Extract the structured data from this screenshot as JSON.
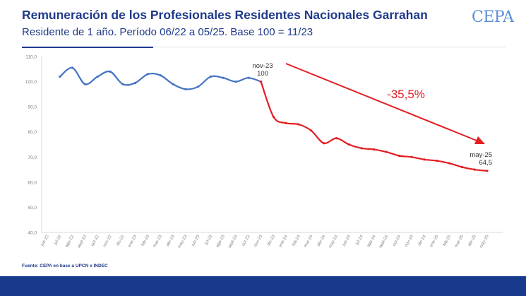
{
  "header": {
    "title": "Remuneración de los Profesionales Residentes Nacionales Garrahan",
    "subtitle": "Residente de 1 año. Período 06/22 a 05/25. Base 100 = 11/23",
    "logo": "CEPA"
  },
  "source": "Fuente: CEPA en base a UPCN e INDEC",
  "colors": {
    "title": "#1f3a8a",
    "series_before": "#4472c4",
    "series_after": "#e31e24",
    "footer_bar": "#173a8c"
  },
  "chart_data": {
    "type": "line",
    "title": "",
    "xlabel": "",
    "ylabel": "",
    "ylim": [
      40,
      110
    ],
    "yticks": [
      "40,0",
      "50,0",
      "60,0",
      "70,0",
      "80,0",
      "90,0",
      "100,0",
      "110,0"
    ],
    "ytick_values": [
      40,
      50,
      60,
      70,
      80,
      90,
      100,
      110
    ],
    "grid": false,
    "x": [
      "jun-22",
      "jul-22",
      "ago-22",
      "sept-22",
      "oct-22",
      "nov-22",
      "dic-22",
      "ene-23",
      "feb-23",
      "mar-23",
      "abr-23",
      "may-23",
      "jun-23",
      "jul-23",
      "ago-23",
      "sept-23",
      "oct-23",
      "nov-23",
      "dic-23",
      "ene-24",
      "feb-24",
      "mar-24",
      "abr-24",
      "may-24",
      "jun-24",
      "jul-24",
      "ago-24",
      "sept-24",
      "oct-24",
      "nov-24",
      "dic-24",
      "ene-25",
      "feb-25",
      "mar-25",
      "abr-25",
      "may-25"
    ],
    "series": [
      {
        "color": "#4472c4",
        "values": [
          null,
          102.0,
          105.5,
          99.0,
          102.0,
          104.0,
          99.0,
          99.5,
          103.0,
          102.5,
          99.0,
          97.0,
          98.0,
          102.0,
          101.5,
          100.0,
          101.5,
          100.0,
          null,
          null,
          null,
          null,
          null,
          null,
          null,
          null,
          null,
          null,
          null,
          null,
          null,
          null,
          null,
          null,
          null,
          null
        ]
      },
      {
        "color": "#e31e24",
        "values": [
          null,
          null,
          null,
          null,
          null,
          null,
          null,
          null,
          null,
          null,
          null,
          null,
          null,
          null,
          null,
          null,
          null,
          100.0,
          86.0,
          83.5,
          83.0,
          80.5,
          75.5,
          77.5,
          75.0,
          73.5,
          73.0,
          72.0,
          70.5,
          70.0,
          69.0,
          68.5,
          67.5,
          66.0,
          65.0,
          64.5
        ]
      }
    ],
    "annotations": [
      {
        "label": "nov-23",
        "value": "100"
      },
      {
        "label": "may-25",
        "value": "64,5"
      },
      {
        "label": "-35,5%"
      }
    ]
  }
}
